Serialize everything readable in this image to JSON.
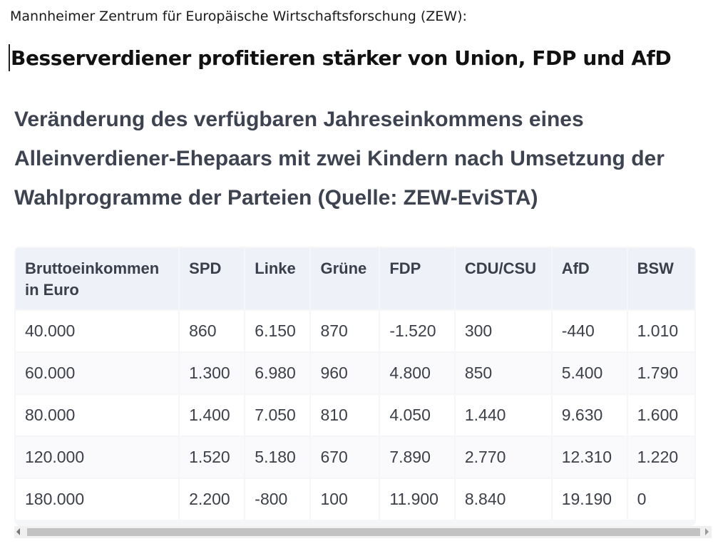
{
  "header": {
    "source_line": "Mannheimer Zentrum für Europäische Wirtschaftsforschung (ZEW):",
    "headline": "Besserverdiener profitieren stärker von Union, FDP und AfD"
  },
  "table_title": "Veränderung des verfügbaren Jahreseinkommens eines Alleinverdiener-Ehepaars mit zwei Kindern nach Umsetzung der Wahlprogramme der Parteien (Quelle: ZEW-EviSTA)",
  "table": {
    "headers": [
      "Bruttoeinkommen in Euro",
      "SPD",
      "Linke",
      "Grüne",
      "FDP",
      "CDU/CSU",
      "AfD",
      "BSW"
    ],
    "rows": [
      [
        "40.000",
        "860",
        "6.150",
        "870",
        "-1.520",
        "300",
        "-440",
        "1.010"
      ],
      [
        "60.000",
        "1.300",
        "6.980",
        "960",
        "4.800",
        "850",
        "5.400",
        "1.790"
      ],
      [
        "80.000",
        "1.400",
        "7.050",
        "810",
        "4.050",
        "1.440",
        "9.630",
        "1.600"
      ],
      [
        "120.000",
        "1.520",
        "5.180",
        "670",
        "7.890",
        "2.770",
        "12.310",
        "1.220"
      ],
      [
        "180.000",
        "2.200",
        "-800",
        "100",
        "11.900",
        "8.840",
        "19.190",
        "0"
      ]
    ]
  },
  "icons": {
    "scroll_left": "chevron-left-icon",
    "scroll_right": "chevron-right-icon"
  }
}
